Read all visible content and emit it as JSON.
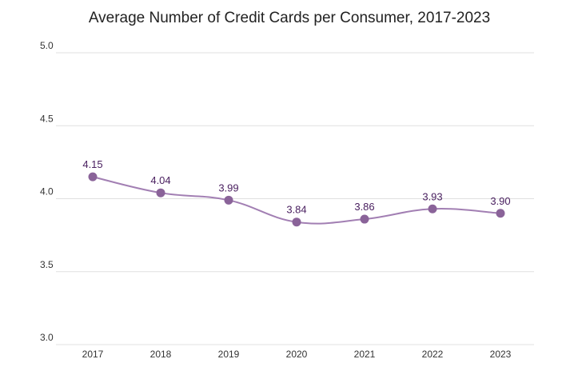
{
  "chart_data": {
    "type": "line",
    "title": "Average Number of Credit Cards per Consumer, 2017-2023",
    "xlabel": "",
    "ylabel": "",
    "categories": [
      "2017",
      "2018",
      "2019",
      "2020",
      "2021",
      "2022",
      "2023"
    ],
    "values": [
      4.15,
      4.04,
      3.99,
      3.84,
      3.86,
      3.93,
      3.9
    ],
    "data_labels": [
      "4.15",
      "4.04",
      "3.99",
      "3.84",
      "3.86",
      "3.93",
      "3.90"
    ],
    "ylim": [
      3.0,
      5.0
    ],
    "yticks": [
      3.0,
      3.5,
      4.0,
      4.5,
      5.0
    ],
    "ytick_labels": [
      "3.0",
      "3.5",
      "4.0",
      "4.5",
      "5.0"
    ],
    "grid": true,
    "legend": "none",
    "colors": {
      "line": "#a27fb3",
      "marker": "#8a6399",
      "label": "#4a2060",
      "grid": "#e0e0e0"
    }
  }
}
